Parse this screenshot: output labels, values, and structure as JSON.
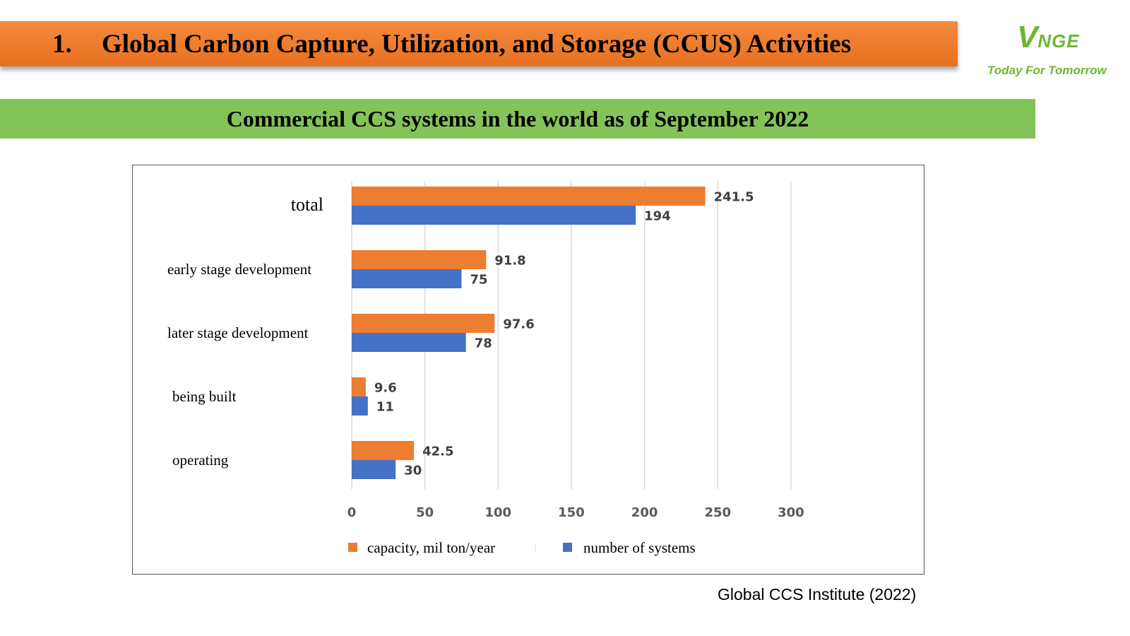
{
  "header": {
    "number": "1.",
    "title": "Global Carbon Capture, Utilization, and Storage (CCUS) Activities",
    "title_bg": "#ee7a2c"
  },
  "logo": {
    "letter": "V",
    "rest": "NGE",
    "tagline": "Today For Tomorrow",
    "color": "#6fb633"
  },
  "subtitle": {
    "text": "Commercial CCS systems in the world as of September 2022",
    "bg": "#84c35a"
  },
  "chart_data": {
    "type": "bar",
    "orientation": "horizontal",
    "categories": [
      "total",
      "early stage development",
      "later stage development",
      "being built",
      "operating"
    ],
    "series": [
      {
        "name": "capacity, mil ton/year",
        "color": "#ed7d31",
        "values": [
          241.5,
          91.8,
          97.6,
          9.6,
          42.5
        ]
      },
      {
        "name": "number of systems",
        "color": "#4472c4",
        "values": [
          194,
          75,
          78,
          11,
          30
        ]
      }
    ],
    "value_labels": [
      [
        "241.5",
        "91.8",
        "97.6",
        "9.6",
        "42.5"
      ],
      [
        "194",
        "75",
        "78",
        "11",
        "30"
      ]
    ],
    "xticks": [
      "0",
      "50",
      "100",
      "150",
      "200",
      "250",
      "300"
    ],
    "xlim": [
      0,
      300
    ],
    "grid": "vertical",
    "legend": "bottom"
  },
  "source": "Global CCS Institute (2022)"
}
